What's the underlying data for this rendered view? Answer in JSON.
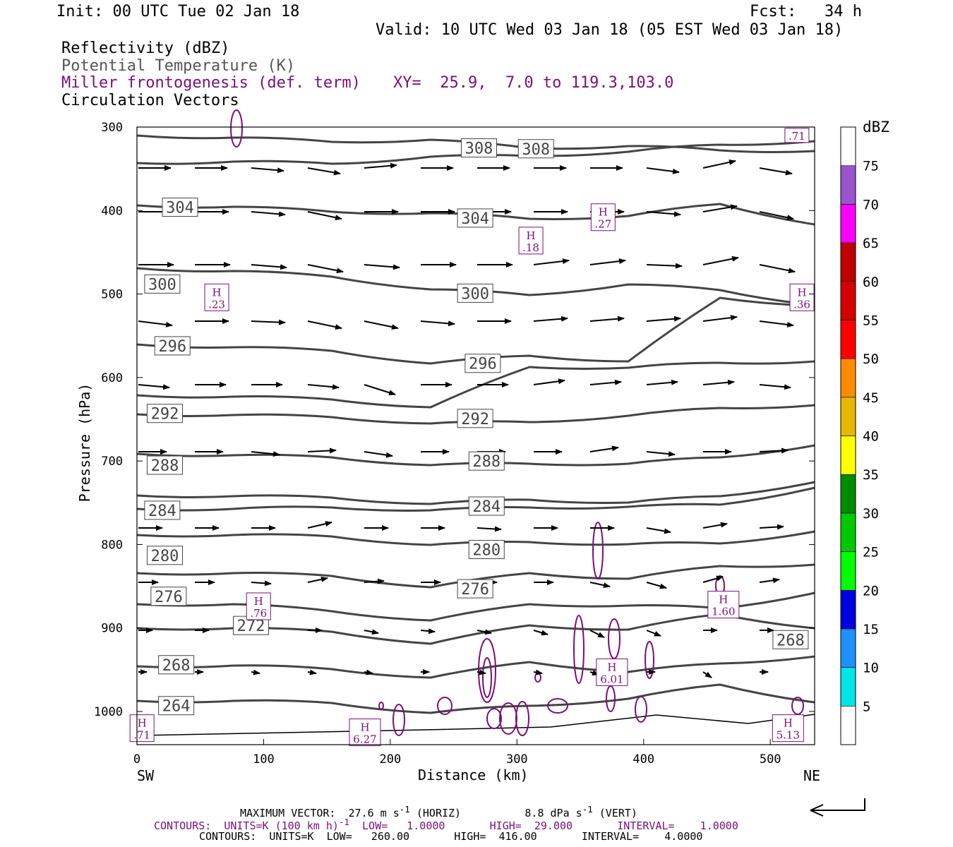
{
  "header": {
    "init": "Init: 00 UTC Tue 02 Jan 18",
    "fcst": "Fcst:   34 h",
    "valid": "Valid: 10 UTC Wed 03 Jan 18 (05 EST Wed 03 Jan 18)",
    "field1": "Reflectivity (dBZ)",
    "field2": "Potential Temperature (K)",
    "field3": "Miller frontogenesis (def. term)",
    "xy": "XY=  25.9,  7.0 to 119.3,103.0",
    "field4": "Circulation Vectors"
  },
  "colors": {
    "theta": "#444444",
    "front": "#7a0f7a",
    "text_purple": "#7a0f7a"
  },
  "chart_data": {
    "type": "cross-section",
    "xlabel": "Distance (km)",
    "ylabel": "Pressure (hPa)",
    "xlim": [
      0,
      535
    ],
    "ylim": [
      1040,
      300
    ],
    "x_ticks": [
      "0",
      "100",
      "200",
      "300",
      "400",
      "500"
    ],
    "y_ticks": [
      "300",
      "400",
      "500",
      "600",
      "700",
      "800",
      "900",
      "1000"
    ],
    "x_end_labels": {
      "left": "SW",
      "right": "NE"
    },
    "colorbar": {
      "title": "dBZ",
      "labels": [
        "5",
        "10",
        "15",
        "20",
        "25",
        "30",
        "35",
        "40",
        "45",
        "50",
        "55",
        "60",
        "65",
        "70",
        "75"
      ],
      "colors": [
        "#ffffff",
        "#00e5e5",
        "#1e90ff",
        "#0000e0",
        "#00ff00",
        "#00c800",
        "#008c00",
        "#ffff00",
        "#e6b800",
        "#ff8c00",
        "#ff0000",
        "#d40000",
        "#bf0000",
        "#ff00ff",
        "#9955cc",
        "#ffffff"
      ]
    },
    "theta_labels": [
      {
        "text": "308",
        "x": 270,
        "p": 325
      },
      {
        "text": "308",
        "x": 315,
        "p": 326
      },
      {
        "text": "304",
        "x": 34,
        "p": 396
      },
      {
        "text": "304",
        "x": 267,
        "p": 409
      },
      {
        "text": "300",
        "x": 20,
        "p": 488
      },
      {
        "text": "300",
        "x": 267,
        "p": 499
      },
      {
        "text": "296",
        "x": 28,
        "p": 562
      },
      {
        "text": "296",
        "x": 273,
        "p": 583
      },
      {
        "text": "292",
        "x": 22,
        "p": 643
      },
      {
        "text": "292",
        "x": 267,
        "p": 649
      },
      {
        "text": "288",
        "x": 22,
        "p": 705
      },
      {
        "text": "288",
        "x": 276,
        "p": 700
      },
      {
        "text": "284",
        "x": 20,
        "p": 759
      },
      {
        "text": "284",
        "x": 276,
        "p": 754
      },
      {
        "text": "280",
        "x": 22,
        "p": 813
      },
      {
        "text": "280",
        "x": 276,
        "p": 806
      },
      {
        "text": "276",
        "x": 25,
        "p": 862
      },
      {
        "text": "276",
        "x": 267,
        "p": 853
      },
      {
        "text": "272",
        "x": 90,
        "p": 897
      },
      {
        "text": "268",
        "x": 31,
        "p": 944
      },
      {
        "text": "268",
        "x": 516,
        "p": 914
      },
      {
        "text": "264",
        "x": 31,
        "p": 993
      }
    ],
    "front_maxima": [
      {
        "label": "H",
        "value": ".27",
        "x": 368,
        "p": 408
      },
      {
        "label": "H",
        "value": ".18",
        "x": 311,
        "p": 436
      },
      {
        "label": "H",
        "value": ".23",
        "x": 63,
        "p": 504
      },
      {
        "label": "H",
        "value": ".36",
        "x": 525,
        "p": 504
      },
      {
        "label": "H",
        "value": ".76",
        "x": 96,
        "p": 874
      },
      {
        "label": "H",
        "value": "1.60",
        "x": 463,
        "p": 872
      },
      {
        "label": "H",
        "value": "6.01",
        "x": 375,
        "p": 953
      },
      {
        "label": "H",
        "value": "6.27",
        "x": 180,
        "p": 1025
      },
      {
        "label": "H",
        "value": "5.13",
        "x": 514,
        "p": 1020
      },
      {
        "label": "",
        "value": ".71",
        "x": 521,
        "p": 310
      },
      {
        "label": "H",
        "value": ".71",
        "x": 4,
        "p": 1020
      }
    ],
    "max_vector": "MAXIMUM VECTOR:  27.6 m s",
    "max_vector_horiz": "(HORIZ)",
    "max_vector_vert": "8.8 dPa s",
    "max_vector_vert_unit": "(VERT)",
    "contours_front": "CONTOURS:  UNITS=K (100 km h)",
    "contours_front_rest": "LOW=   1.0000       HIGH=  29.000       INTERVAL=    1.0000",
    "contours_theta": "CONTOURS:  UNITS=K  LOW=   260.00       HIGH=  416.00       INTERVAL=    4.0000"
  }
}
